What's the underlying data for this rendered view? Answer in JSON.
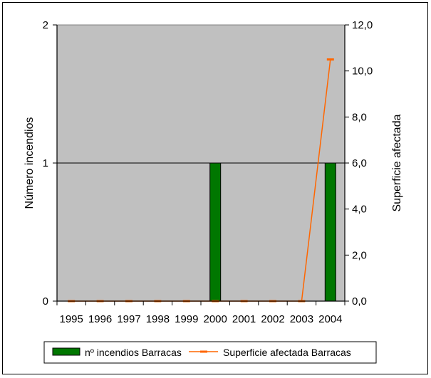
{
  "chart_data": {
    "type": "bar+line",
    "categories": [
      "1995",
      "1996",
      "1997",
      "1998",
      "1999",
      "2000",
      "2001",
      "2002",
      "2003",
      "2004"
    ],
    "series": [
      {
        "name": "nº incendios Barracas",
        "type": "bar",
        "axis": "left",
        "color": "#007700",
        "values": [
          0,
          0,
          0,
          0,
          0,
          1,
          0,
          0,
          0,
          1
        ]
      },
      {
        "name": "Superficie afectada Barracas",
        "type": "line",
        "axis": "right",
        "color": "#FF6600",
        "values": [
          0,
          0,
          0,
          0,
          0,
          0,
          0,
          0,
          0,
          10.5
        ]
      }
    ],
    "ylabel_left": "Número incendios",
    "ylabel_right": "Superficie afectada",
    "ylim_left": [
      0,
      2
    ],
    "yticks_left": [
      "0",
      "1",
      "2"
    ],
    "ylim_right": [
      0,
      12
    ],
    "yticks_right": [
      "0,0",
      "2,0",
      "4,0",
      "6,0",
      "8,0",
      "10,0",
      "12,0"
    ],
    "plot_background": "#C0C0C0",
    "grid": "horizontal",
    "legend_position": "bottom"
  }
}
